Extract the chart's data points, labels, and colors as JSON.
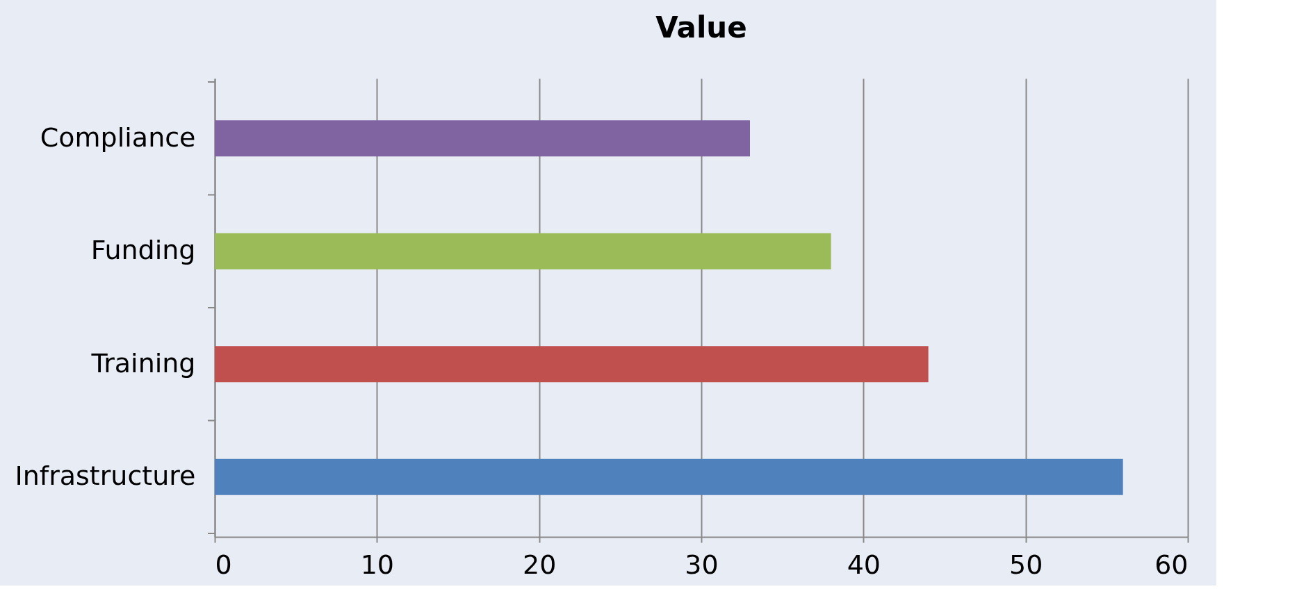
{
  "chart_data": {
    "type": "bar",
    "orientation": "horizontal",
    "title": "Value",
    "categories": [
      "Compliance",
      "Funding",
      "Training",
      "Infrastructure"
    ],
    "values": [
      33,
      38,
      44,
      56
    ],
    "colors": [
      "#8064a2",
      "#9bbb59",
      "#c0504d",
      "#4f81bd"
    ],
    "xlim": [
      0,
      60
    ],
    "xticks": [
      0,
      10,
      20,
      30,
      40,
      50,
      60
    ],
    "grid": "x"
  }
}
